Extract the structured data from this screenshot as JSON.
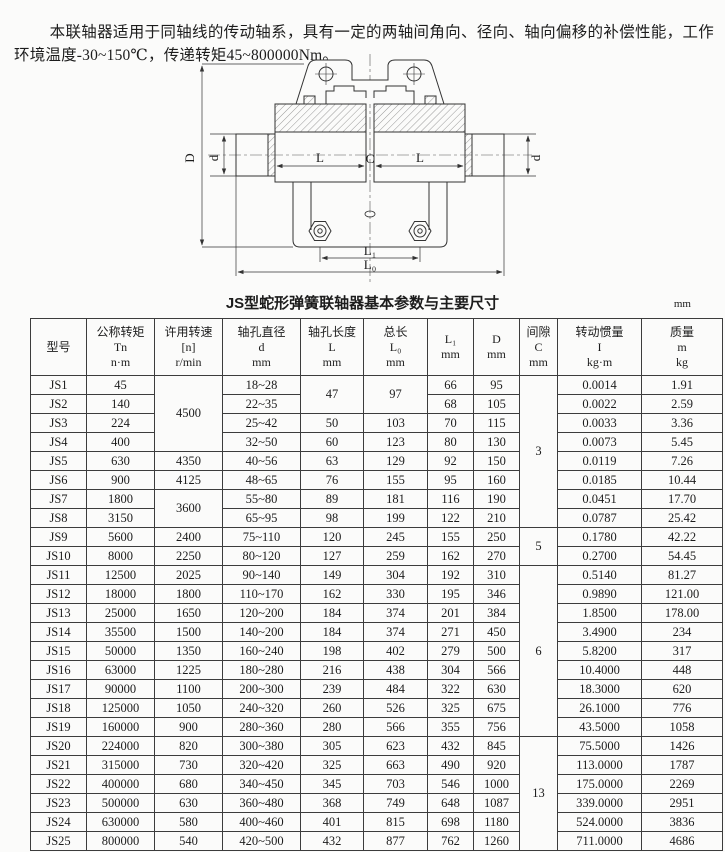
{
  "intro": {
    "text": "本联轴器适用于同轴线的传动轴系，具有一定的两轴间角向、径向、轴向偏移的补偿性能，工作环境温度-30~150℃，传递转矩45~800000Nm。"
  },
  "drawing": {
    "labels": {
      "D": "D",
      "d": "d",
      "L": "L",
      "C": "C",
      "L1": "L₁",
      "L0": "L₀"
    }
  },
  "table": {
    "title": "JS型蛇形弹簧联轴器基本参数与主要尺寸",
    "unit": "mm",
    "headers": [
      {
        "lines": [
          "型号"
        ]
      },
      {
        "lines": [
          "公称转矩",
          "Tn",
          "n·m"
        ]
      },
      {
        "lines": [
          "许用转速",
          "[n]",
          "r/min"
        ]
      },
      {
        "lines": [
          "轴孔直径",
          "d",
          "mm"
        ]
      },
      {
        "lines": [
          "轴孔长度",
          "L",
          "mm"
        ]
      },
      {
        "lines": [
          "总长",
          "L₀",
          "mm"
        ]
      },
      {
        "lines": [
          "L₁",
          "mm"
        ]
      },
      {
        "lines": [
          "D",
          "mm"
        ]
      },
      {
        "lines": [
          "间隙",
          "C",
          "mm"
        ]
      },
      {
        "lines": [
          "转动惯量",
          "I",
          "kg·m"
        ]
      },
      {
        "lines": [
          "质量",
          "m",
          "kg"
        ]
      }
    ],
    "rows": [
      [
        "JS1",
        "45",
        {
          "v": "4500",
          "rs": 4
        },
        "18~28",
        {
          "v": "47",
          "rs": 2
        },
        {
          "v": "97",
          "rs": 2
        },
        "66",
        "95",
        {
          "v": "3",
          "rs": 8
        },
        "0.0014",
        "1.91"
      ],
      [
        "JS2",
        "140",
        "22~35",
        "68",
        "105",
        "0.0022",
        "2.59"
      ],
      [
        "JS3",
        "224",
        "25~42",
        "50",
        "103",
        "70",
        "115",
        "0.0033",
        "3.36"
      ],
      [
        "JS4",
        "400",
        "32~50",
        "60",
        "123",
        "80",
        "130",
        "0.0073",
        "5.45"
      ],
      [
        "JS5",
        "630",
        "4350",
        "40~56",
        "63",
        "129",
        "92",
        "150",
        "0.0119",
        "7.26"
      ],
      [
        "JS6",
        "900",
        "4125",
        "48~65",
        "76",
        "155",
        "95",
        "160",
        "0.0185",
        "10.44"
      ],
      [
        "JS7",
        "1800",
        {
          "v": "3600",
          "rs": 2
        },
        "55~80",
        "89",
        "181",
        "116",
        "190",
        "0.0451",
        "17.70"
      ],
      [
        "JS8",
        "3150",
        "65~95",
        "98",
        "199",
        "122",
        "210",
        "0.0787",
        "25.42"
      ],
      [
        "JS9",
        "5600",
        "2400",
        "75~110",
        "120",
        "245",
        "155",
        "250",
        {
          "v": "5",
          "rs": 2
        },
        "0.1780",
        "42.22"
      ],
      [
        "JS10",
        "8000",
        "2250",
        "80~120",
        "127",
        "259",
        "162",
        "270",
        "0.2700",
        "54.45"
      ],
      [
        "JS11",
        "12500",
        "2025",
        "90~140",
        "149",
        "304",
        "192",
        "310",
        {
          "v": "6",
          "rs": 9
        },
        "0.5140",
        "81.27"
      ],
      [
        "JS12",
        "18000",
        "1800",
        "110~170",
        "162",
        "330",
        "195",
        "346",
        "0.9890",
        "121.00"
      ],
      [
        "JS13",
        "25000",
        "1650",
        "120~200",
        "184",
        "374",
        "201",
        "384",
        "1.8500",
        "178.00"
      ],
      [
        "JS14",
        "35500",
        "1500",
        "140~200",
        "184",
        "374",
        "271",
        "450",
        "3.4900",
        "234"
      ],
      [
        "JS15",
        "50000",
        "1350",
        "160~240",
        "198",
        "402",
        "279",
        "500",
        "5.8200",
        "317"
      ],
      [
        "JS16",
        "63000",
        "1225",
        "180~280",
        "216",
        "438",
        "304",
        "566",
        "10.4000",
        "448"
      ],
      [
        "JS17",
        "90000",
        "1100",
        "200~300",
        "239",
        "484",
        "322",
        "630",
        "18.3000",
        "620"
      ],
      [
        "JS18",
        "125000",
        "1050",
        "240~320",
        "260",
        "526",
        "325",
        "675",
        "26.1000",
        "776"
      ],
      [
        "JS19",
        "160000",
        "900",
        "280~360",
        "280",
        "566",
        "355",
        "756",
        "43.5000",
        "1058"
      ],
      [
        "JS20",
        "224000",
        "820",
        "300~380",
        "305",
        "623",
        "432",
        "845",
        {
          "v": "13",
          "rs": 6
        },
        "75.5000",
        "1426"
      ],
      [
        "JS21",
        "315000",
        "730",
        "320~420",
        "325",
        "663",
        "490",
        "920",
        "113.0000",
        "1787"
      ],
      [
        "JS22",
        "400000",
        "680",
        "340~450",
        "345",
        "703",
        "546",
        "1000",
        "175.0000",
        "2269"
      ],
      [
        "JS23",
        "500000",
        "630",
        "360~480",
        "368",
        "749",
        "648",
        "1087",
        "339.0000",
        "2951"
      ],
      [
        "JS24",
        "630000",
        "580",
        "400~460",
        "401",
        "815",
        "698",
        "1180",
        "524.0000",
        "3836"
      ],
      [
        "JS25",
        "800000",
        "540",
        "420~500",
        "432",
        "877",
        "762",
        "1260",
        "711.0000",
        "4686"
      ]
    ]
  }
}
